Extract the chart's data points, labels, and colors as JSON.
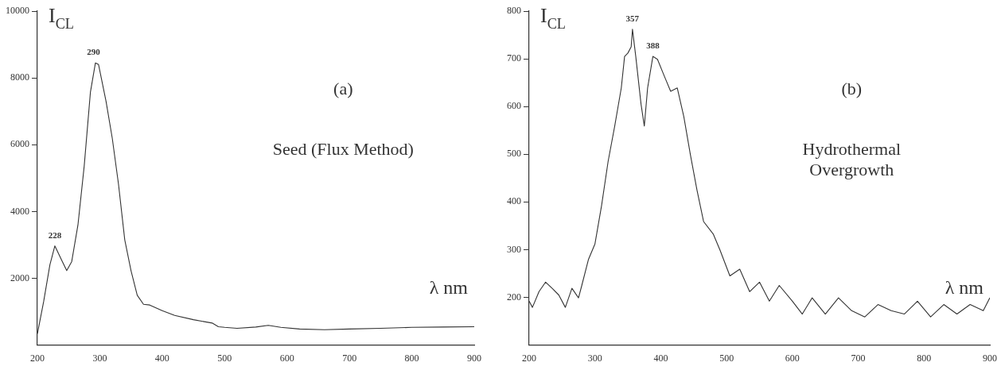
{
  "chart_data": [
    {
      "type": "line",
      "title": "(a)",
      "xlabel": "λ nm",
      "ylabel": "I$_{CL}$",
      "annotations": [
        "Seed (Flux Method)",
        {
          "text": "228",
          "x": 228,
          "y": 2970
        },
        {
          "text": "290",
          "x": 290,
          "y": 8450
        }
      ],
      "series": [
        {
          "color": "#333333",
          "x": [
            200,
            210,
            220,
            228,
            240,
            247,
            255,
            265,
            275,
            285,
            293,
            298,
            310,
            320,
            330,
            340,
            350,
            360,
            370,
            380,
            400,
            420,
            450,
            480,
            490,
            500,
            520,
            550,
            570,
            590,
            620,
            660,
            700,
            750,
            800,
            850,
            900
          ],
          "values": [
            340,
            1300,
            2400,
            2970,
            2500,
            2230,
            2500,
            3600,
            5360,
            7580,
            8450,
            8400,
            7300,
            6190,
            4810,
            3150,
            2230,
            1490,
            1220,
            1200,
            1030,
            890,
            760,
            660,
            550,
            530,
            500,
            540,
            590,
            530,
            480,
            460,
            480,
            500,
            530,
            540,
            550
          ]
        }
      ],
      "xlim": [
        200,
        900
      ],
      "xticks": [
        200,
        300,
        400,
        500,
        600,
        700,
        800,
        900
      ],
      "ylim": [
        0,
        10000
      ],
      "yticks": [
        2000,
        4000,
        6000,
        8000,
        10000
      ],
      "grid": false,
      "legend": false,
      "marker": "none",
      "line_style": "solid"
    },
    {
      "type": "line",
      "title": "(b)",
      "xlabel": "λ nm",
      "ylabel": "I$_{CL}$",
      "annotations": [
        "Hydrothermal Overgrowth",
        {
          "text": "357",
          "x": 357,
          "y": 762
        },
        {
          "text": "388",
          "x": 388,
          "y": 705
        }
      ],
      "series": [
        {
          "color": "#333333",
          "x": [
            200,
            205,
            215,
            225,
            235,
            245,
            255,
            265,
            275,
            280,
            290,
            300,
            310,
            320,
            330,
            340,
            345,
            350,
            355,
            357,
            362,
            370,
            375,
            380,
            388,
            395,
            405,
            415,
            425,
            435,
            445,
            455,
            465,
            480,
            490,
            505,
            520,
            535,
            550,
            565,
            580,
            600,
            615,
            630,
            650,
            670,
            690,
            710,
            730,
            750,
            770,
            790,
            810,
            830,
            850,
            870,
            890,
            900
          ],
          "values": [
            192,
            179,
            212,
            232,
            219,
            205,
            179,
            219,
            199,
            225,
            279,
            312,
            392,
            485,
            559,
            639,
            705,
            712,
            725,
            762,
            705,
            605,
            559,
            639,
            705,
            699,
            665,
            632,
            639,
            579,
            499,
            425,
            359,
            332,
            299,
            245,
            259,
            212,
            232,
            192,
            225,
            192,
            165,
            199,
            165,
            199,
            172,
            159,
            185,
            172,
            165,
            192,
            159,
            185,
            165,
            185,
            172,
            199
          ]
        }
      ],
      "xlim": [
        200,
        900
      ],
      "xticks": [
        200,
        300,
        400,
        500,
        600,
        700,
        800,
        900
      ],
      "ylim": [
        100,
        800
      ],
      "yticks": [
        200,
        300,
        400,
        500,
        600,
        700,
        800
      ],
      "grid": false,
      "legend": false,
      "marker": "none",
      "line_style": "solid"
    }
  ]
}
